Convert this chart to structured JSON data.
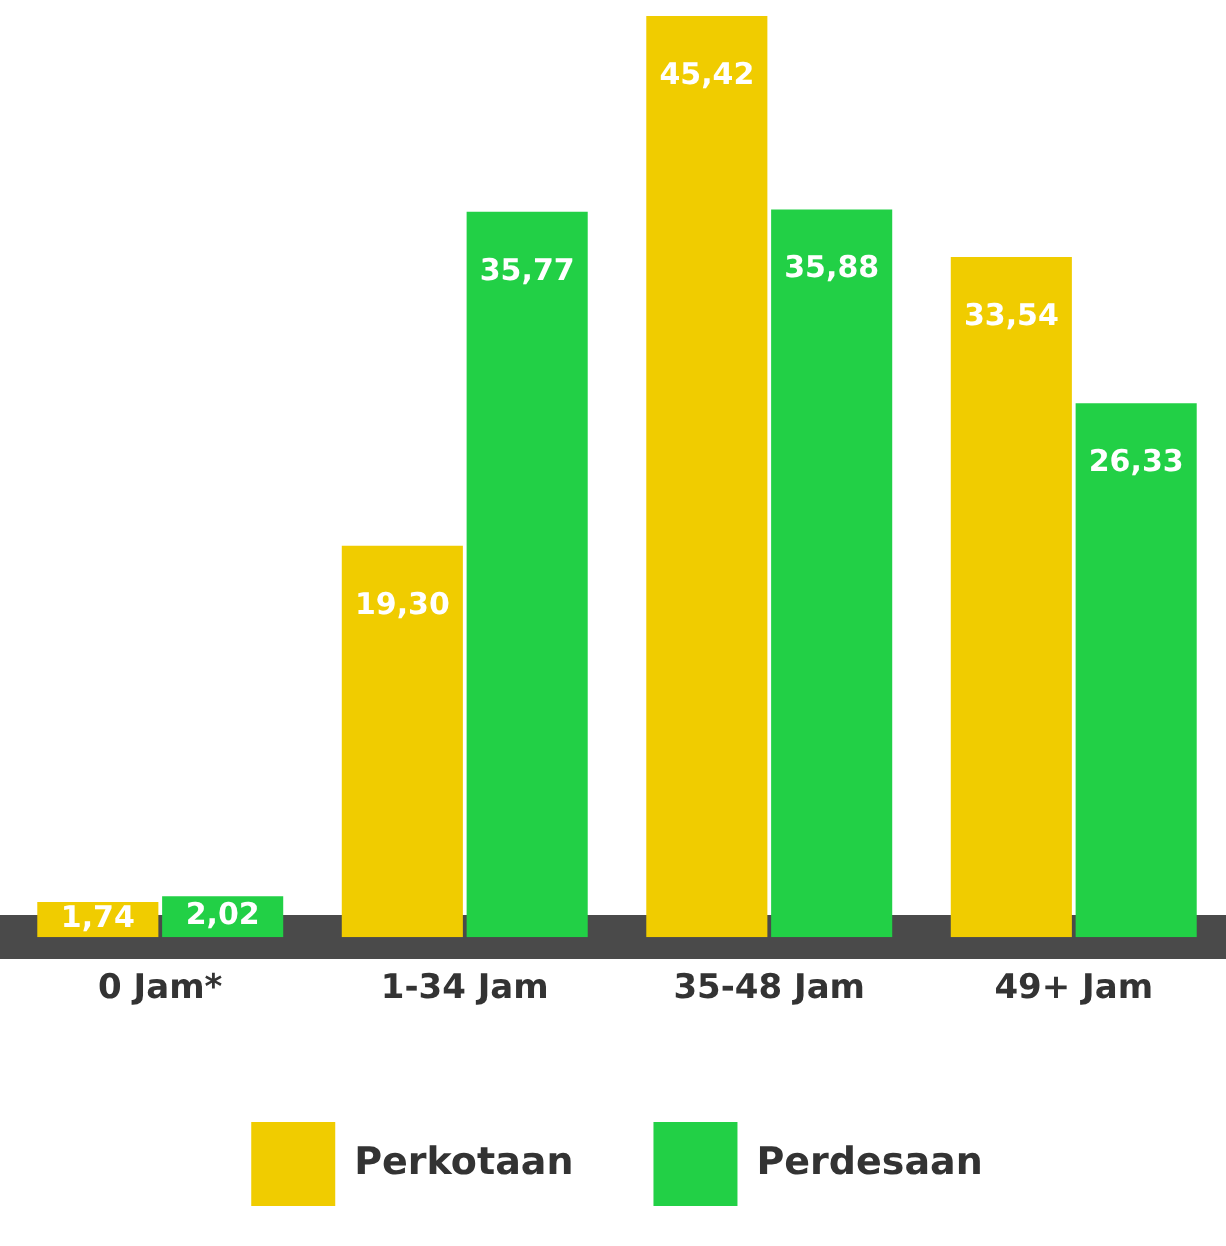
{
  "chart_data": {
    "type": "bar",
    "categories": [
      "0 Jam*",
      "1-34 Jam",
      "35-48 Jam",
      "49+ Jam"
    ],
    "series": [
      {
        "name": "Perkotaan",
        "color": "#f0cc00",
        "values": [
          1.74,
          19.3,
          45.42,
          33.54
        ],
        "value_labels": [
          "1,74",
          "19,30",
          "45,42",
          "33,54"
        ]
      },
      {
        "name": "Perdesaan",
        "color": "#22d046",
        "values": [
          2.02,
          35.77,
          35.88,
          26.33
        ],
        "value_labels": [
          "2,02",
          "35,77",
          "35,88",
          "26,33"
        ]
      }
    ],
    "ylim": [
      0,
      45.42
    ],
    "tick_labels": "x",
    "grid": false,
    "legend": "bottom"
  }
}
